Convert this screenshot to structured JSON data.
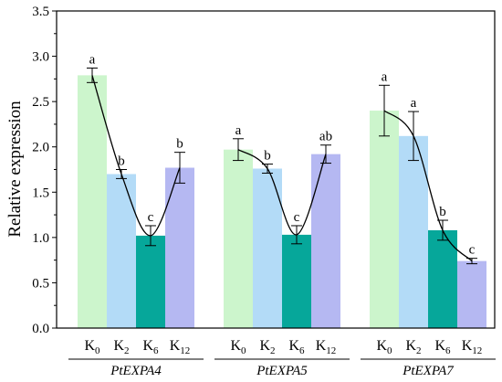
{
  "chart_data": {
    "type": "bar",
    "ylabel": "Relative expression",
    "ylim": [
      0,
      3.5
    ],
    "yticks": [
      "0.0",
      "0.5",
      "1.0",
      "1.5",
      "2.0",
      "2.5",
      "3.0",
      "3.5"
    ],
    "grid": false,
    "legend": "none",
    "series_colors": {
      "K0": "#ccf5cc",
      "K2": "#b3dbf7",
      "K6": "#06a79a",
      "K12": "#b5b8f2"
    },
    "groups": [
      {
        "name": "PtEXPA4",
        "bars": [
          {
            "label_main": "K",
            "label_sub": "0",
            "color_key": "K0",
            "value": 2.79,
            "error": 0.08,
            "sig": "a"
          },
          {
            "label_main": "K",
            "label_sub": "2",
            "color_key": "K2",
            "value": 1.7,
            "error": 0.05,
            "sig": "b"
          },
          {
            "label_main": "K",
            "label_sub": "6",
            "color_key": "K6",
            "value": 1.02,
            "error": 0.11,
            "sig": "c"
          },
          {
            "label_main": "K",
            "label_sub": "12",
            "color_key": "K12",
            "value": 1.77,
            "error": 0.17,
            "sig": "b"
          }
        ]
      },
      {
        "name": "PtEXPA5",
        "bars": [
          {
            "label_main": "K",
            "label_sub": "0",
            "color_key": "K0",
            "value": 1.97,
            "error": 0.12,
            "sig": "a"
          },
          {
            "label_main": "K",
            "label_sub": "2",
            "color_key": "K2",
            "value": 1.76,
            "error": 0.05,
            "sig": "b"
          },
          {
            "label_main": "K",
            "label_sub": "6",
            "color_key": "K6",
            "value": 1.03,
            "error": 0.1,
            "sig": "c"
          },
          {
            "label_main": "K",
            "label_sub": "12",
            "color_key": "K12",
            "value": 1.92,
            "error": 0.1,
            "sig": "ab"
          }
        ]
      },
      {
        "name": "PtEXPA7",
        "bars": [
          {
            "label_main": "K",
            "label_sub": "0",
            "color_key": "K0",
            "value": 2.4,
            "error": 0.28,
            "sig": "a"
          },
          {
            "label_main": "K",
            "label_sub": "2",
            "color_key": "K2",
            "value": 2.12,
            "error": 0.27,
            "sig": "a"
          },
          {
            "label_main": "K",
            "label_sub": "6",
            "color_key": "K6",
            "value": 1.08,
            "error": 0.11,
            "sig": "b"
          },
          {
            "label_main": "K",
            "label_sub": "12",
            "color_key": "K12",
            "value": 0.74,
            "error": 0.03,
            "sig": "c"
          }
        ]
      }
    ]
  }
}
